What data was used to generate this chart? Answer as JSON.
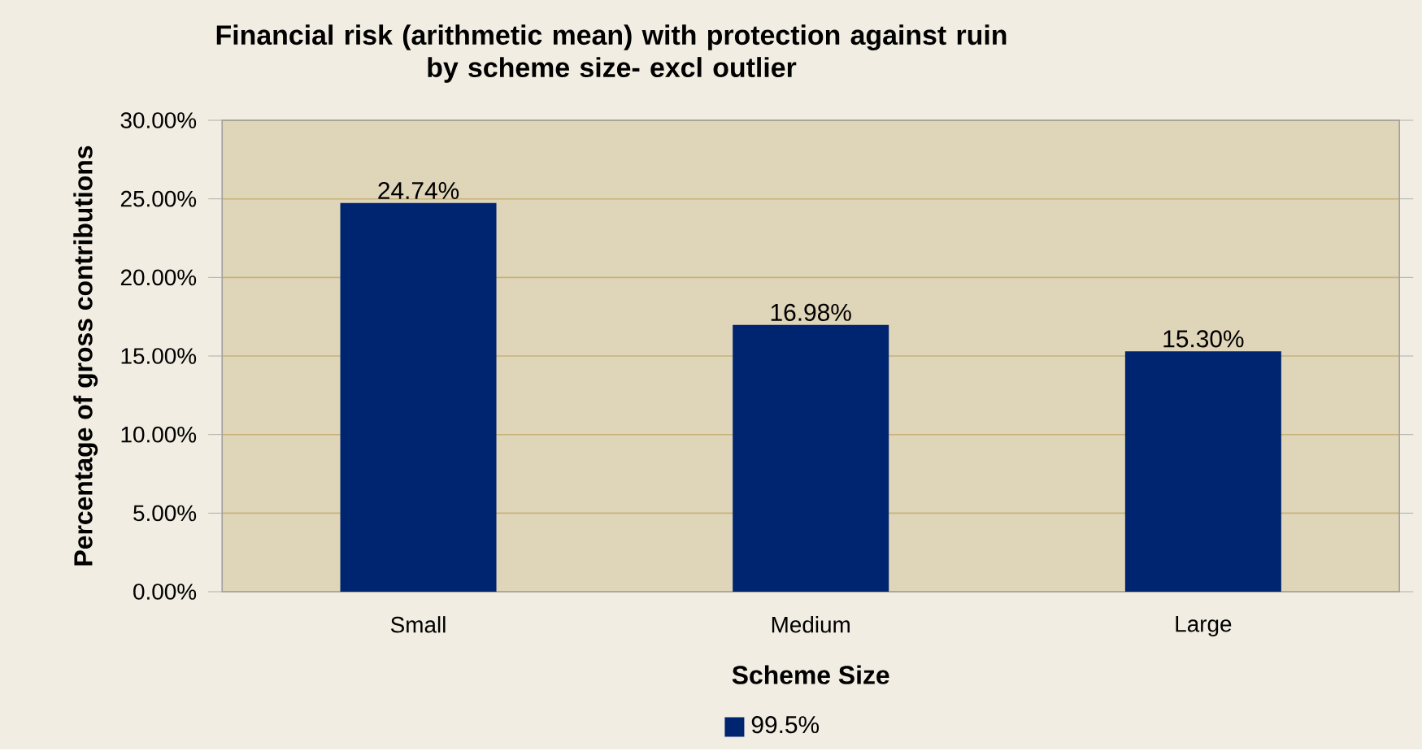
{
  "chart_data": {
    "type": "bar",
    "title": "Financial risk (arithmetic mean) with protection against ruin\nby scheme size- excl outlier",
    "xlabel": "Scheme Size",
    "ylabel": "Percentage of gross contributions",
    "categories": [
      "Small",
      "Medium",
      "Large"
    ],
    "series": [
      {
        "name": "99.5%",
        "color": "#002570",
        "values": [
          24.74,
          16.98,
          15.3
        ],
        "value_labels": [
          "24.74%",
          "16.98%",
          "15.30%"
        ]
      }
    ],
    "ylim": [
      0,
      30
    ],
    "yticks": [
      {
        "value": 0,
        "label": "0.00%"
      },
      {
        "value": 5,
        "label": "5.00%"
      },
      {
        "value": 10,
        "label": "10.00%"
      },
      {
        "value": 15,
        "label": "15.00%"
      },
      {
        "value": 20,
        "label": "20.00%"
      },
      {
        "value": 25,
        "label": "25.00%"
      },
      {
        "value": 30,
        "label": "30.00%"
      }
    ],
    "grid": "y",
    "legend": "bottom"
  }
}
